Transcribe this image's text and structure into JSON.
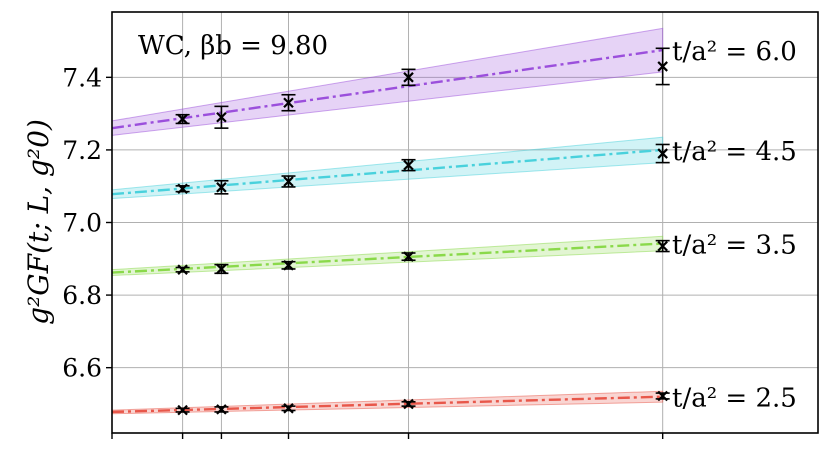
{
  "chart_data": {
    "type": "line",
    "annotation": "WC, βb = 9.80",
    "ylabel": "g²GF(t; L, g²0)",
    "ylim": [
      6.42,
      7.58
    ],
    "xlim": [
      0.0,
      1.0
    ],
    "yticks": [
      6.6,
      6.8,
      7.0,
      7.2,
      7.4
    ],
    "ytick_labels": [
      "6.6",
      "6.8",
      "7.0",
      "7.2",
      "7.4"
    ],
    "xticks": [
      0.0,
      0.1,
      0.155,
      0.25,
      0.42,
      0.78
    ],
    "grid": true,
    "series": [
      {
        "label": "t/a² = 6.0",
        "color": "#9b4fdc",
        "fit": {
          "x": [
            0.0,
            0.78
          ],
          "y": [
            7.26,
            7.475
          ],
          "band": [
            0.02,
            0.06
          ]
        },
        "points": [
          {
            "x": 0.1,
            "y": 7.285,
            "err": 0.012
          },
          {
            "x": 0.155,
            "y": 7.29,
            "err": 0.03
          },
          {
            "x": 0.25,
            "y": 7.33,
            "err": 0.022
          },
          {
            "x": 0.42,
            "y": 7.4,
            "err": 0.022
          },
          {
            "x": 0.78,
            "y": 7.43,
            "err": 0.05
          }
        ]
      },
      {
        "label": "t/a² = 4.5",
        "color": "#49d1dc",
        "fit": {
          "x": [
            0.0,
            0.78
          ],
          "y": [
            7.078,
            7.2
          ],
          "band": [
            0.012,
            0.035
          ]
        },
        "points": [
          {
            "x": 0.1,
            "y": 7.093,
            "err": 0.008
          },
          {
            "x": 0.155,
            "y": 7.097,
            "err": 0.018
          },
          {
            "x": 0.25,
            "y": 7.113,
            "err": 0.015
          },
          {
            "x": 0.42,
            "y": 7.158,
            "err": 0.015
          },
          {
            "x": 0.78,
            "y": 7.19,
            "err": 0.025
          }
        ]
      },
      {
        "label": "t/a² = 3.5",
        "color": "#8ad94a",
        "fit": {
          "x": [
            0.0,
            0.78
          ],
          "y": [
            6.862,
            6.942
          ],
          "band": [
            0.008,
            0.02
          ]
        },
        "points": [
          {
            "x": 0.1,
            "y": 6.87,
            "err": 0.006
          },
          {
            "x": 0.155,
            "y": 6.872,
            "err": 0.012
          },
          {
            "x": 0.25,
            "y": 6.882,
            "err": 0.01
          },
          {
            "x": 0.42,
            "y": 6.906,
            "err": 0.01
          },
          {
            "x": 0.78,
            "y": 6.935,
            "err": 0.015
          }
        ]
      },
      {
        "label": "t/a² = 2.5",
        "color": "#e8574a",
        "fit": {
          "x": [
            0.0,
            0.78
          ],
          "y": [
            6.478,
            6.52
          ],
          "band": [
            0.005,
            0.015
          ]
        },
        "points": [
          {
            "x": 0.1,
            "y": 6.483,
            "err": 0.005
          },
          {
            "x": 0.155,
            "y": 6.485,
            "err": 0.007
          },
          {
            "x": 0.25,
            "y": 6.488,
            "err": 0.006
          },
          {
            "x": 0.42,
            "y": 6.5,
            "err": 0.006
          },
          {
            "x": 0.78,
            "y": 6.522,
            "err": 0.008
          }
        ]
      }
    ]
  }
}
